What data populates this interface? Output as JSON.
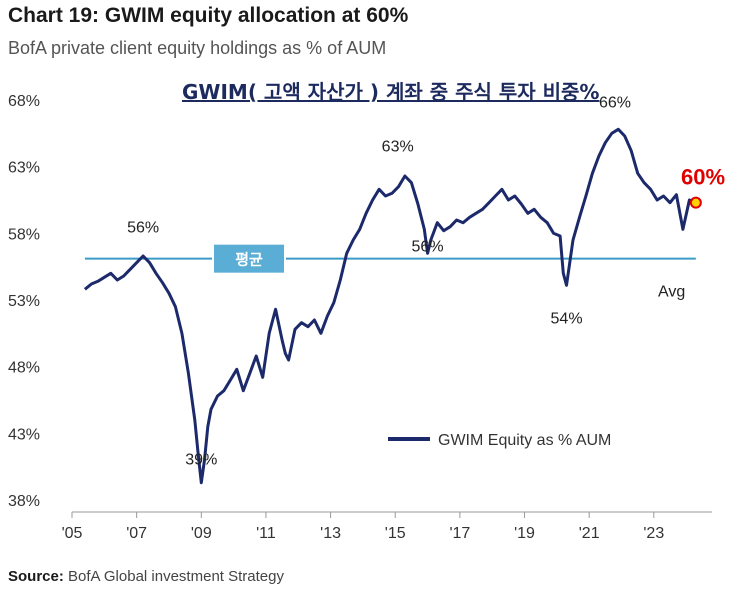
{
  "header": {
    "title": "Chart 19: GWIM equity allocation at 60%",
    "subtitle": "BofA private client equity holdings as % of AUM",
    "korean_title": "GWIM( 고액 자산가 ) 계좌 중 주식 투자 비중%"
  },
  "source": {
    "label": "Source:",
    "text": "BofA Global investment Strategy"
  },
  "chart_data": {
    "type": "line",
    "ylim": [
      38,
      68
    ],
    "xlim": [
      2005.0,
      2024.8
    ],
    "y_ticks": [
      68,
      63,
      58,
      53,
      48,
      43,
      38
    ],
    "y_tick_labels": [
      "68%",
      "63%",
      "58%",
      "53%",
      "48%",
      "43%",
      "38%"
    ],
    "x_ticks": [
      2005,
      2007,
      2009,
      2011,
      2013,
      2015,
      2017,
      2019,
      2021,
      2023
    ],
    "x_tick_labels": [
      "'05",
      "'07",
      "'09",
      "'11",
      "'13",
      "'15",
      "'17",
      "'19",
      "'21",
      "'23"
    ],
    "average": {
      "value": 56.1,
      "label": "Avg",
      "badge_label": "평균"
    },
    "legend": {
      "label": "GWIM Equity as % AUM",
      "position": "bottom-right"
    },
    "colors": {
      "series": "#1c2a6b",
      "average": "#3a9bc7",
      "highlight": "#e00000",
      "marker": "#ffd200"
    },
    "annotations": [
      {
        "text": "56%",
        "x": 2007.2,
        "y": 56.4
      },
      {
        "text": "39%",
        "x": 2009.0,
        "y": 39.3
      },
      {
        "text": "63%",
        "x": 2015.2,
        "y": 62.5
      },
      {
        "text": "56%",
        "x": 2016.0,
        "y": 55.3
      },
      {
        "text": "54%",
        "x": 2020.3,
        "y": 54.1
      },
      {
        "text": "66%",
        "x": 2021.8,
        "y": 65.8
      },
      {
        "text": "60%",
        "x": 2024.4,
        "y": 60.3,
        "highlight": true
      }
    ],
    "series": [
      {
        "name": "GWIM Equity as % AUM",
        "x": [
          2005.4,
          2005.6,
          2005.8,
          2006.0,
          2006.2,
          2006.4,
          2006.6,
          2006.8,
          2007.0,
          2007.2,
          2007.4,
          2007.6,
          2007.8,
          2008.0,
          2008.2,
          2008.4,
          2008.6,
          2008.8,
          2008.9,
          2009.0,
          2009.1,
          2009.2,
          2009.3,
          2009.5,
          2009.7,
          2009.9,
          2010.1,
          2010.3,
          2010.5,
          2010.7,
          2010.9,
          2011.1,
          2011.3,
          2011.5,
          2011.6,
          2011.7,
          2011.9,
          2012.1,
          2012.3,
          2012.5,
          2012.7,
          2012.9,
          2013.1,
          2013.3,
          2013.5,
          2013.7,
          2013.9,
          2014.1,
          2014.3,
          2014.5,
          2014.7,
          2014.9,
          2015.1,
          2015.3,
          2015.5,
          2015.7,
          2015.9,
          2016.0,
          2016.1,
          2016.3,
          2016.5,
          2016.7,
          2016.9,
          2017.1,
          2017.3,
          2017.5,
          2017.7,
          2017.9,
          2018.1,
          2018.3,
          2018.5,
          2018.7,
          2018.9,
          2019.1,
          2019.3,
          2019.5,
          2019.7,
          2019.9,
          2020.1,
          2020.2,
          2020.3,
          2020.5,
          2020.7,
          2020.9,
          2021.1,
          2021.3,
          2021.5,
          2021.7,
          2021.9,
          2022.1,
          2022.3,
          2022.5,
          2022.7,
          2022.9,
          2023.1,
          2023.3,
          2023.5,
          2023.7,
          2023.9,
          2024.1,
          2024.3
        ],
        "y": [
          53.8,
          54.2,
          54.4,
          54.7,
          55.0,
          54.5,
          54.8,
          55.3,
          55.8,
          56.3,
          55.8,
          55.0,
          54.3,
          53.5,
          52.5,
          50.5,
          47.5,
          44.0,
          41.5,
          39.3,
          41.0,
          43.5,
          44.8,
          45.8,
          46.2,
          47.0,
          47.8,
          46.2,
          47.5,
          48.8,
          47.2,
          50.5,
          52.3,
          50.0,
          49.0,
          48.5,
          50.8,
          51.3,
          51.0,
          51.5,
          50.5,
          51.8,
          52.8,
          54.5,
          56.5,
          57.5,
          58.3,
          59.5,
          60.5,
          61.3,
          60.8,
          61.0,
          61.5,
          62.3,
          61.8,
          60.2,
          58.3,
          56.5,
          57.5,
          58.8,
          58.2,
          58.5,
          59.0,
          58.8,
          59.2,
          59.5,
          59.8,
          60.3,
          60.8,
          61.3,
          60.5,
          60.8,
          60.2,
          59.5,
          59.8,
          59.2,
          58.8,
          58.0,
          57.8,
          55.0,
          54.1,
          57.5,
          59.2,
          60.8,
          62.5,
          63.8,
          64.8,
          65.5,
          65.8,
          65.3,
          64.2,
          62.5,
          61.8,
          61.3,
          60.5,
          60.8,
          60.3,
          60.9,
          58.3,
          60.5,
          60.3
        ]
      }
    ]
  }
}
